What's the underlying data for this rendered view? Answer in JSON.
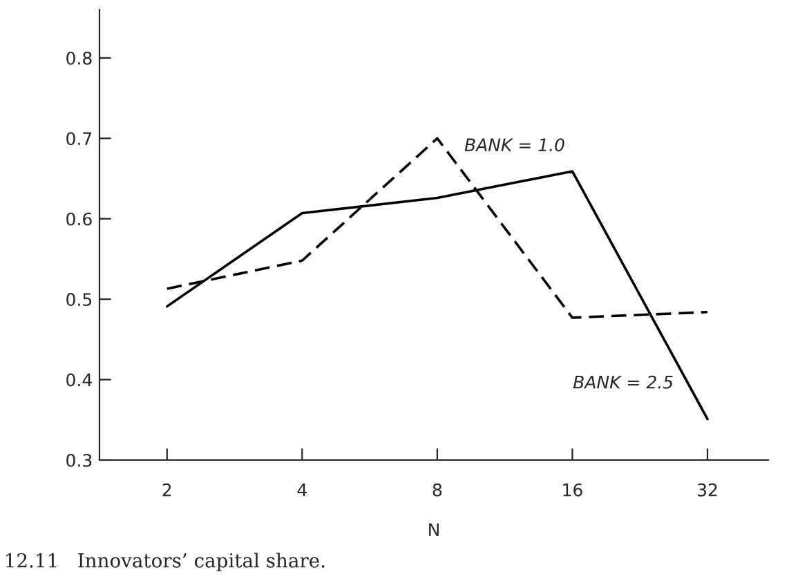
{
  "chart_data": {
    "type": "line",
    "xlabel": "N",
    "categories": [
      "2",
      "4",
      "8",
      "16",
      "32"
    ],
    "series": [
      {
        "name": "BANK = 2.5",
        "color": "#000000",
        "line_style": "solid",
        "values": [
          0.491,
          0.607,
          0.626,
          0.659,
          0.351
        ]
      },
      {
        "name": "BANK = 1.0",
        "color": "#000000",
        "line_style": "dashed",
        "values": [
          0.513,
          0.548,
          0.7,
          0.477,
          0.484
        ]
      }
    ],
    "ylim": [
      0.3,
      0.86
    ],
    "yticks": [
      0.3,
      0.4,
      0.5,
      0.6,
      0.7,
      0.8
    ],
    "grid": false,
    "legend": false,
    "annotations": [
      "12.11   Innovators’ capital share."
    ]
  }
}
